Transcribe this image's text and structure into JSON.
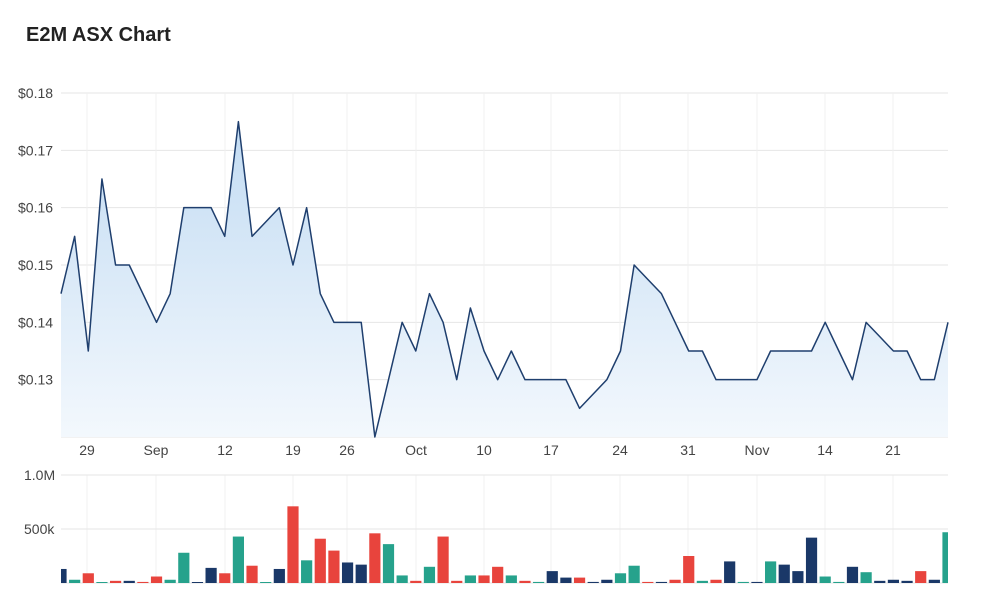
{
  "title": "E2M ASX Chart",
  "chart_data": [
    {
      "type": "area",
      "series": [
        {
          "values": [
            0.145,
            0.155,
            0.135,
            0.165,
            0.15,
            0.15,
            0.145,
            0.14,
            0.145,
            0.16,
            0.16,
            0.16,
            0.155,
            0.175,
            0.155,
            0.1575,
            0.16,
            0.15,
            0.16,
            0.145,
            0.14,
            0.14,
            0.14,
            0.12,
            0.13,
            0.14,
            0.135,
            0.145,
            0.14,
            0.13,
            0.1425,
            0.135,
            0.13,
            0.135,
            0.13,
            0.13,
            0.13,
            0.13,
            0.125,
            0.1275,
            0.13,
            0.135,
            0.15,
            0.1475,
            0.145,
            0.14,
            0.135,
            0.135,
            0.13,
            0.13,
            0.13,
            0.13,
            0.135,
            0.135,
            0.135,
            0.135,
            0.14,
            0.135,
            0.13,
            0.14,
            0.1375,
            0.135,
            0.135,
            0.13,
            0.13,
            0.14
          ]
        }
      ],
      "y_ticks": [
        "$0.18",
        "$0.17",
        "$0.16",
        "$0.15",
        "$0.14",
        "$0.13"
      ],
      "ylim": [
        0.12,
        0.18
      ],
      "x_ticks": [
        "29",
        "Sep",
        "12",
        "19",
        "26",
        "Oct",
        "10",
        "17",
        "24",
        "31",
        "Nov",
        "14",
        "21"
      ],
      "line_color": "#1f3f6e",
      "fill_color_top": "#c3dcf3",
      "fill_color_bottom": "#f3f8fd",
      "grid": true
    },
    {
      "type": "bar",
      "y_ticks": [
        "1.0M",
        "500k"
      ],
      "ylim": [
        0,
        1000000
      ],
      "values": [
        130000,
        30000,
        90000,
        0,
        20000,
        20000,
        10000,
        60000,
        30000,
        280000,
        0,
        140000,
        90000,
        430000,
        160000,
        0,
        130000,
        710000,
        210000,
        410000,
        300000,
        190000,
        170000,
        460000,
        360000,
        70000,
        20000,
        150000,
        430000,
        20000,
        70000,
        70000,
        150000,
        70000,
        20000,
        10000,
        110000,
        50000,
        50000,
        10000,
        30000,
        90000,
        160000,
        10000,
        10000,
        30000,
        250000,
        20000,
        30000,
        200000,
        10000,
        10000,
        200000,
        170000,
        110000,
        420000,
        60000,
        10000,
        150000,
        100000,
        20000,
        30000,
        20000,
        110000,
        30000,
        470000
      ],
      "colors": [
        "navy",
        "teal",
        "red",
        "teal",
        "red",
        "navy",
        "red",
        "red",
        "teal",
        "teal",
        "navy",
        "navy",
        "red",
        "teal",
        "red",
        "teal",
        "navy",
        "red",
        "teal",
        "red",
        "red",
        "navy",
        "navy",
        "red",
        "teal",
        "teal",
        "red",
        "teal",
        "red",
        "red",
        "teal",
        "red",
        "red",
        "teal",
        "red",
        "teal",
        "navy",
        "navy",
        "red",
        "navy",
        "navy",
        "teal",
        "teal",
        "red",
        "navy",
        "red",
        "red",
        "teal",
        "red",
        "navy",
        "teal",
        "navy",
        "teal",
        "navy",
        "navy",
        "navy",
        "teal",
        "teal",
        "navy",
        "teal",
        "navy",
        "navy",
        "navy",
        "red",
        "navy",
        "teal"
      ],
      "palette": {
        "navy": "#1a3868",
        "teal": "#26a28c",
        "red": "#e8443d"
      }
    }
  ]
}
